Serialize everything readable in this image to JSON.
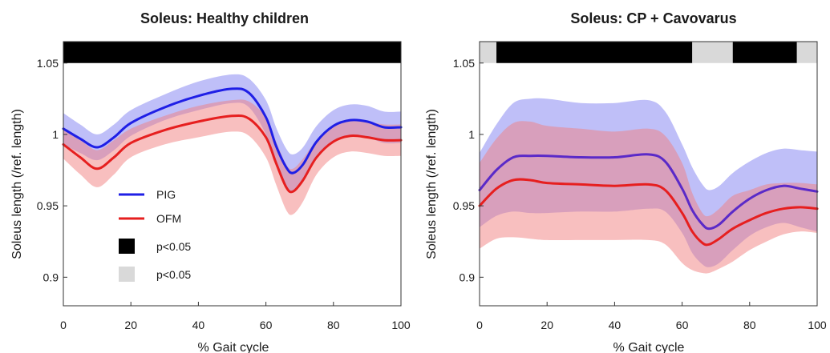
{
  "legend": {
    "entries": [
      {
        "label": "PIG",
        "color": "#1f1fe6",
        "kind": "line"
      },
      {
        "label": "OFM",
        "color": "#e61f1f",
        "kind": "line"
      },
      {
        "label": "p<0.05",
        "color": "#000000",
        "kind": "box"
      },
      {
        "label": "p<0.05",
        "color": "#d9d9d9",
        "kind": "box"
      }
    ]
  },
  "chart_data": [
    {
      "type": "line",
      "title": "Soleus: Healthy children",
      "xlabel": "% Gait cycle",
      "ylabel": "Soleus length (/ref. length)",
      "xlim": [
        0,
        100
      ],
      "ylim": [
        0.88,
        1.065
      ],
      "xticks": [
        0,
        20,
        40,
        60,
        80,
        100
      ],
      "yticks": [
        0.9,
        0.95,
        1,
        1.05
      ],
      "ytick_labels": [
        "0.9",
        "0.95",
        "1",
        "1.05"
      ],
      "significance_bar": [
        {
          "start": 0,
          "end": 100,
          "color": "#000000"
        }
      ],
      "x": [
        0,
        5,
        10,
        15,
        20,
        30,
        40,
        50,
        55,
        60,
        63,
        66,
        68,
        71,
        75,
        80,
        85,
        90,
        95,
        100
      ],
      "series": [
        {
          "name": "PIG",
          "color": "#1f1fe6",
          "band_color": "#8080f2",
          "values": [
            1.004,
            0.997,
            0.991,
            0.998,
            1.008,
            1.019,
            1.027,
            1.032,
            1.029,
            1.012,
            0.992,
            0.977,
            0.973,
            0.979,
            0.995,
            1.006,
            1.01,
            1.009,
            1.005,
            1.005
          ],
          "band_halfwidth": [
            0.011,
            0.01,
            0.009,
            0.009,
            0.009,
            0.009,
            0.01,
            0.01,
            0.01,
            0.012,
            0.013,
            0.013,
            0.013,
            0.012,
            0.011,
            0.011,
            0.011,
            0.011,
            0.011,
            0.011
          ]
        },
        {
          "name": "OFM",
          "color": "#e61f1f",
          "band_color": "#f28080",
          "values": [
            0.993,
            0.984,
            0.976,
            0.984,
            0.994,
            1.003,
            1.009,
            1.013,
            1.011,
            0.998,
            0.98,
            0.963,
            0.96,
            0.968,
            0.984,
            0.995,
            0.999,
            0.998,
            0.996,
            0.996
          ],
          "band_halfwidth": [
            0.01,
            0.012,
            0.013,
            0.012,
            0.01,
            0.01,
            0.011,
            0.011,
            0.012,
            0.014,
            0.015,
            0.016,
            0.016,
            0.015,
            0.012,
            0.011,
            0.011,
            0.011,
            0.011,
            0.011
          ]
        }
      ]
    },
    {
      "type": "line",
      "title": "Soleus: CP + Cavovarus",
      "xlabel": "% Gait cycle",
      "ylabel": "Soleus length (/ref. length)",
      "xlim": [
        0,
        100
      ],
      "ylim": [
        0.88,
        1.065
      ],
      "xticks": [
        0,
        20,
        40,
        60,
        80,
        100
      ],
      "yticks": [
        0.9,
        0.95,
        1,
        1.05
      ],
      "ytick_labels": [
        "0.9",
        "0.95",
        "1",
        "1.05"
      ],
      "significance_bar": [
        {
          "start": 0,
          "end": 5,
          "color": "#d9d9d9"
        },
        {
          "start": 5,
          "end": 63,
          "color": "#000000"
        },
        {
          "start": 63,
          "end": 75,
          "color": "#d9d9d9"
        },
        {
          "start": 75,
          "end": 94,
          "color": "#000000"
        },
        {
          "start": 94,
          "end": 100,
          "color": "#d9d9d9"
        }
      ],
      "x": [
        0,
        5,
        10,
        15,
        20,
        30,
        40,
        50,
        55,
        60,
        63,
        66,
        68,
        71,
        75,
        80,
        85,
        90,
        95,
        100
      ],
      "series": [
        {
          "name": "PIG",
          "color": "#5a2ac8",
          "band_color": "#8080f2",
          "values": [
            0.961,
            0.975,
            0.984,
            0.985,
            0.985,
            0.984,
            0.984,
            0.986,
            0.981,
            0.962,
            0.947,
            0.937,
            0.934,
            0.937,
            0.946,
            0.955,
            0.961,
            0.964,
            0.962,
            0.96
          ],
          "band_halfwidth": [
            0.026,
            0.032,
            0.038,
            0.04,
            0.04,
            0.038,
            0.038,
            0.038,
            0.035,
            0.031,
            0.03,
            0.028,
            0.027,
            0.027,
            0.027,
            0.026,
            0.026,
            0.026,
            0.027,
            0.028
          ]
        },
        {
          "name": "OFM",
          "color": "#e61f1f",
          "band_color": "#f28080",
          "values": [
            0.95,
            0.962,
            0.968,
            0.968,
            0.966,
            0.965,
            0.964,
            0.965,
            0.961,
            0.945,
            0.932,
            0.924,
            0.923,
            0.927,
            0.934,
            0.94,
            0.945,
            0.948,
            0.949,
            0.948
          ],
          "band_halfwidth": [
            0.03,
            0.035,
            0.04,
            0.041,
            0.04,
            0.039,
            0.038,
            0.039,
            0.038,
            0.035,
            0.027,
            0.021,
            0.02,
            0.021,
            0.023,
            0.021,
            0.02,
            0.018,
            0.017,
            0.017
          ]
        }
      ]
    }
  ]
}
